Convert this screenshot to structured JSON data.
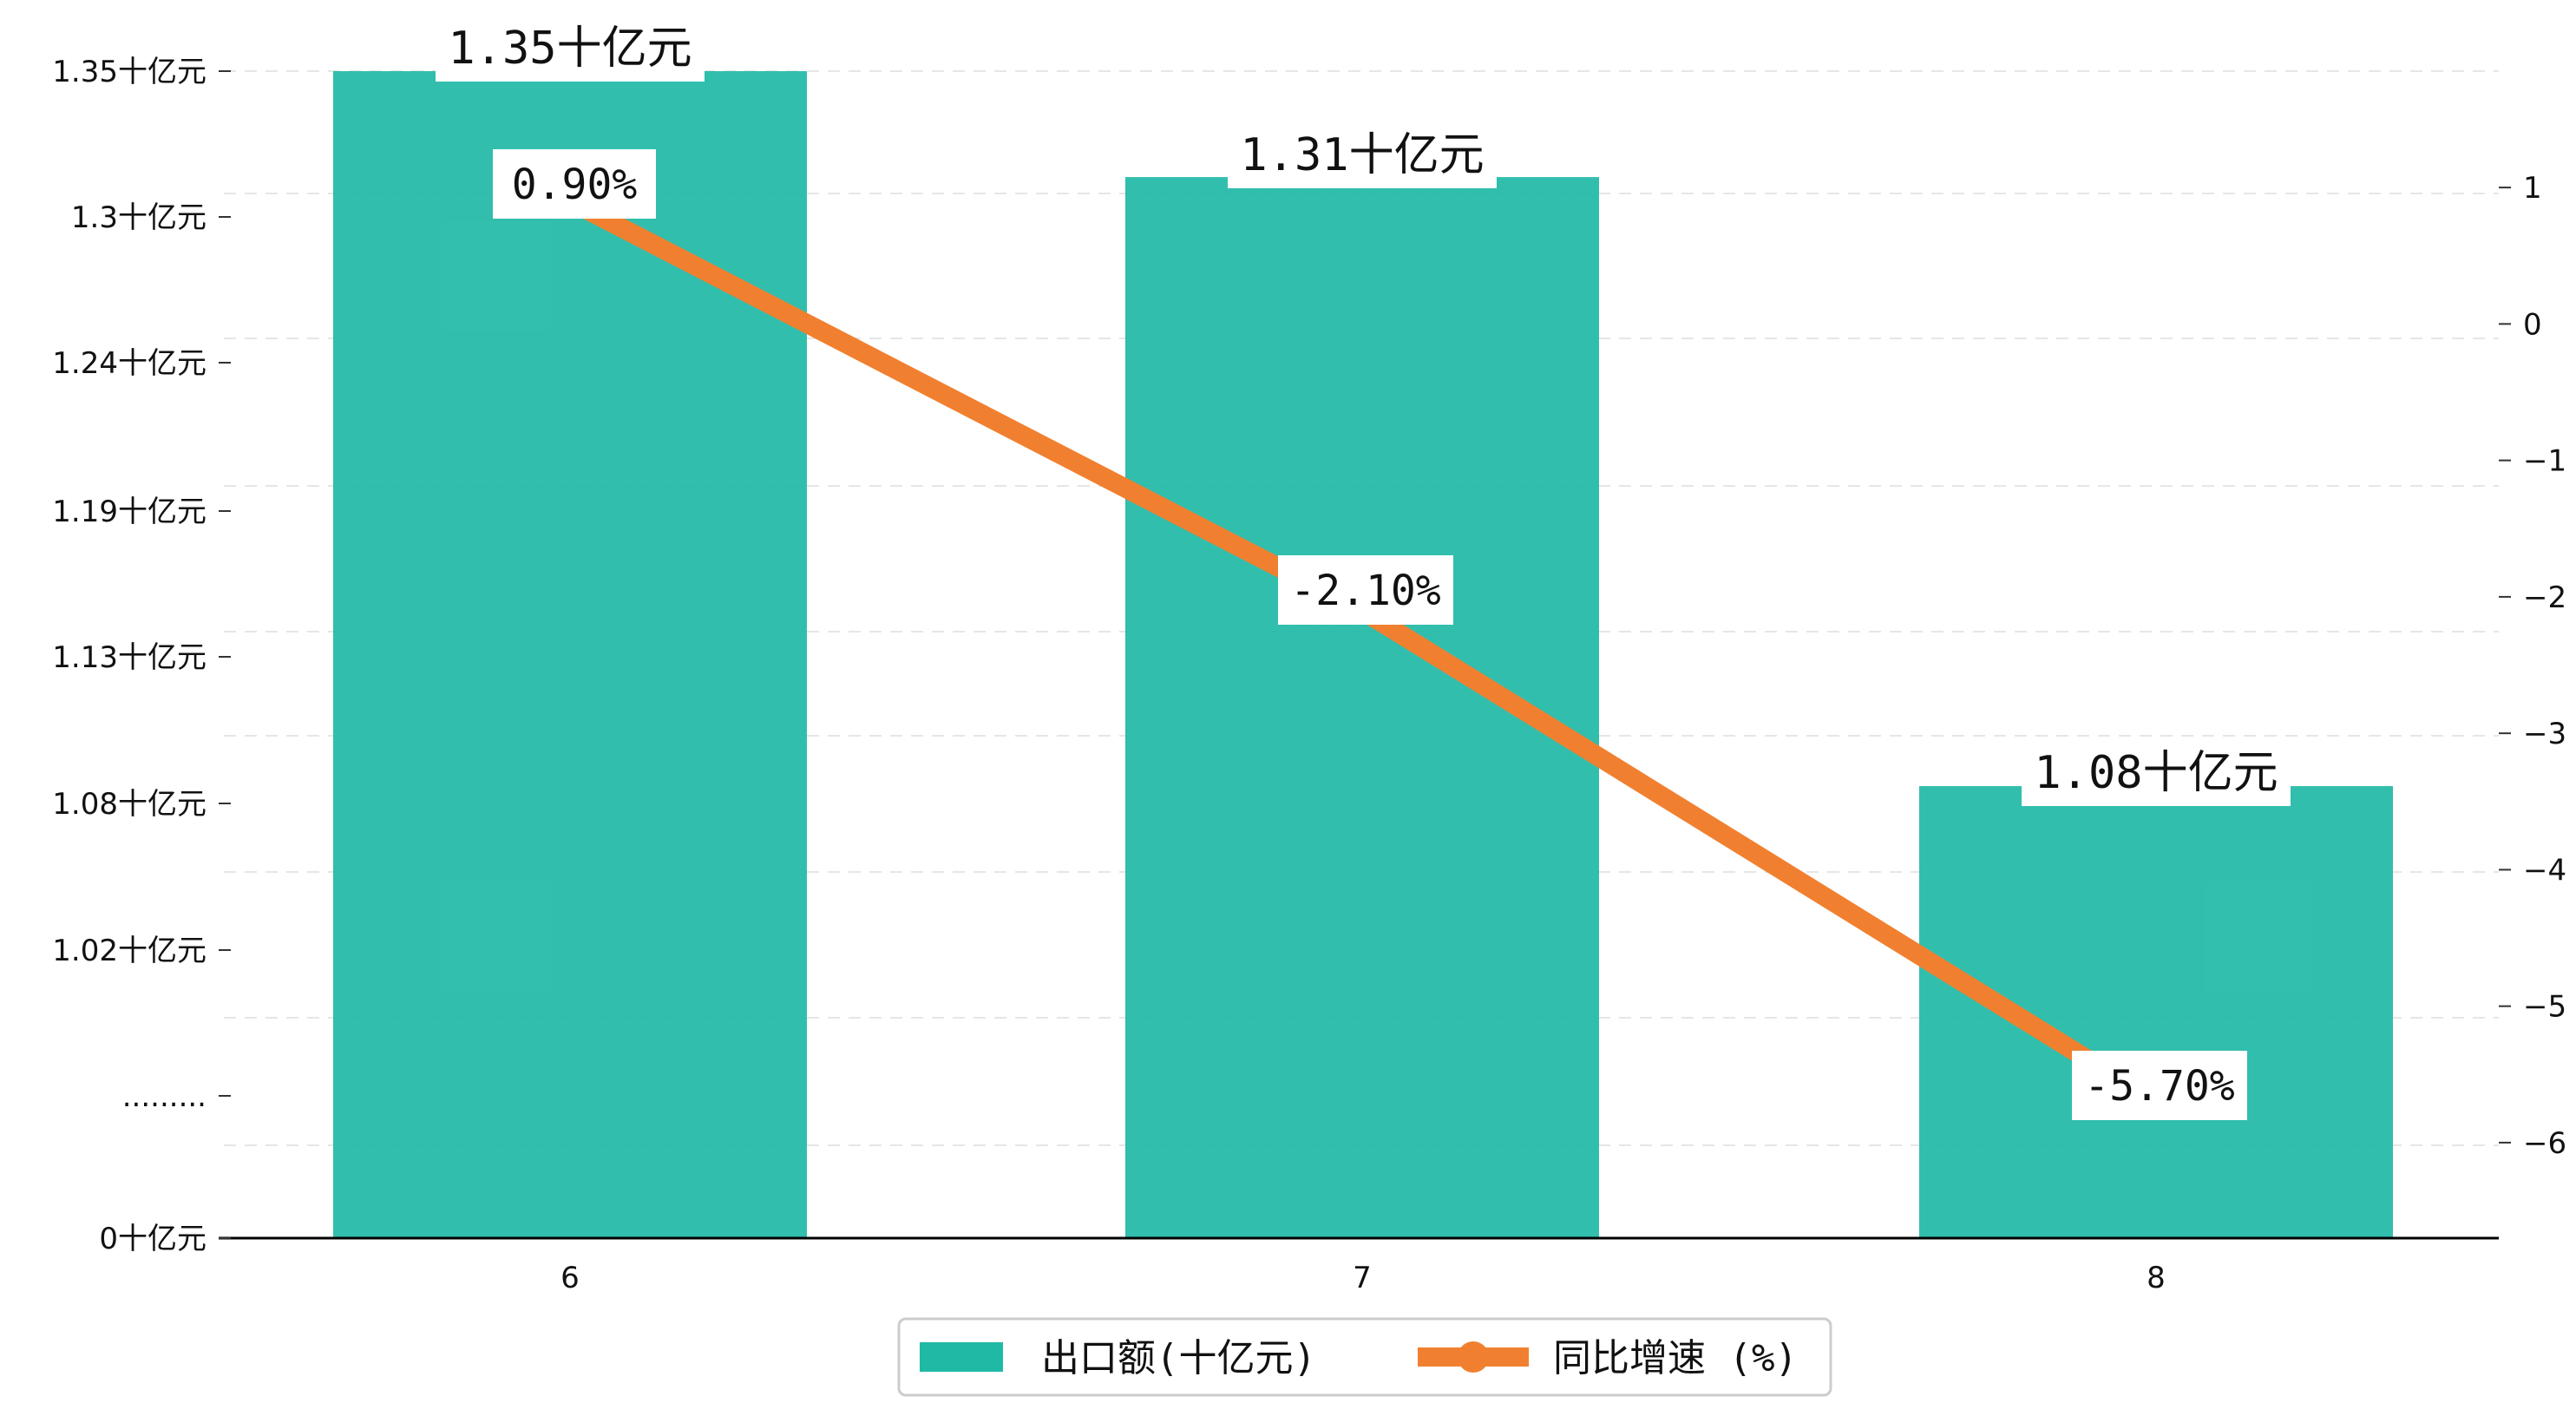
{
  "chart_data": {
    "type": "bar",
    "categories": [
      "6",
      "7",
      "8"
    ],
    "series": [
      {
        "name": "出口额(十亿元)",
        "type": "bar",
        "axis": "left",
        "color": "#20B9A6",
        "values": [
          1.35,
          1.31,
          1.08
        ],
        "labels": [
          "1.35十亿元",
          "1.31十亿元",
          "1.08十亿元"
        ]
      },
      {
        "name": "同比增速 (%)",
        "type": "line",
        "axis": "right",
        "color": "#F08030",
        "values": [
          0.9,
          -2.1,
          -5.7
        ],
        "labels": [
          "0.90%",
          "-2.10%",
          "-5.70%"
        ]
      }
    ],
    "left_axis": {
      "tick_labels": [
        "0十亿元",
        ".........",
        "1.02十亿元",
        "1.08十亿元",
        "1.13十亿元",
        "1.19十亿元",
        "1.24十亿元",
        "1.3十亿元",
        "1.35十亿元"
      ],
      "note": "broken axis: lower segment 0, upper segment linear from 0.965 to 1.35"
    },
    "right_axis": {
      "ticks": [
        1,
        0,
        -1,
        -2,
        -3,
        -4,
        -5,
        -6
      ],
      "tick_labels": [
        "1",
        "0",
        "−1",
        "−2",
        "−3",
        "−4",
        "−5",
        "−6"
      ],
      "ylim": [
        -6.7,
        1.98
      ]
    },
    "grid": "horizontal dashed",
    "legend_position": "bottom-center"
  }
}
